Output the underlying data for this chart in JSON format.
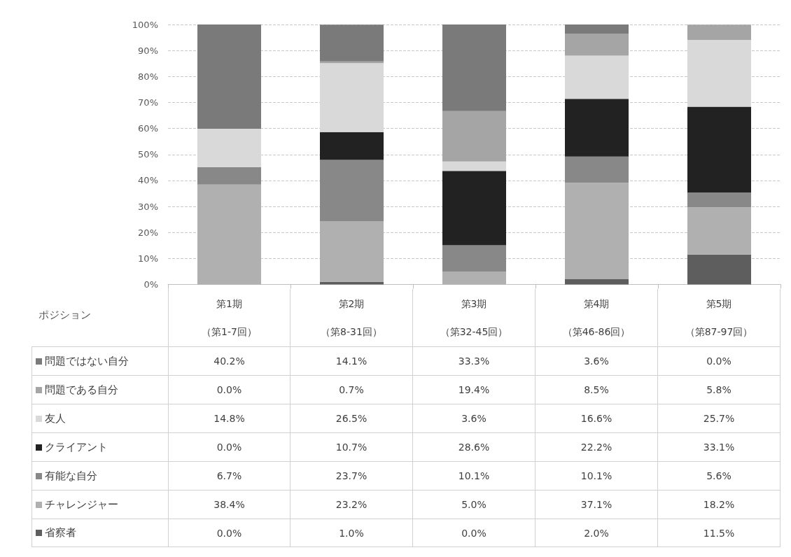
{
  "chart_data": {
    "type": "bar",
    "stacked": true,
    "categories": [
      "第1期（第1-7回）",
      "第2期（第8-31回）",
      "第3期（第32-45回）",
      "第4期（第46-86回）",
      "第5期（第87-97回）"
    ],
    "legend_title": "ポジション",
    "series": [
      {
        "name": "省察者",
        "color": "#5e5e5e",
        "values": [
          0.0,
          1.0,
          0.0,
          2.0,
          11.5
        ],
        "value_labels": [
          "0.0%",
          "1.0%",
          "0.0%",
          "2.0%",
          "11.5%"
        ]
      },
      {
        "name": "チャレンジャー",
        "color": "#b0b0b0",
        "values": [
          38.4,
          23.2,
          5.0,
          37.1,
          18.2
        ],
        "value_labels": [
          "38.4%",
          "23.2%",
          "5.0%",
          "37.1%",
          "18.2%"
        ]
      },
      {
        "name": "有能な自分",
        "color": "#888888",
        "values": [
          6.7,
          23.7,
          10.1,
          10.1,
          5.6
        ],
        "value_labels": [
          "6.7%",
          "23.7%",
          "10.1%",
          "10.1%",
          "5.6%"
        ]
      },
      {
        "name": "クライアント",
        "color": "#222222",
        "values": [
          0.0,
          10.7,
          28.6,
          22.2,
          33.1
        ],
        "value_labels": [
          "0.0%",
          "10.7%",
          "28.6%",
          "22.2%",
          "33.1%"
        ]
      },
      {
        "name": "友人",
        "color": "#d9d9d9",
        "values": [
          14.8,
          26.5,
          3.6,
          16.6,
          25.7
        ],
        "value_labels": [
          "14.8%",
          "26.5%",
          "3.6%",
          "16.6%",
          "25.7%"
        ]
      },
      {
        "name": "問題である自分",
        "color": "#a5a5a5",
        "values": [
          0.0,
          0.7,
          19.4,
          8.5,
          5.8
        ],
        "value_labels": [
          "0.0%",
          "0.7%",
          "19.4%",
          "8.5%",
          "5.8%"
        ]
      },
      {
        "name": "問題ではない自分",
        "color": "#7a7a7a",
        "values": [
          40.2,
          14.1,
          33.3,
          3.6,
          0.0
        ],
        "value_labels": [
          "40.2%",
          "14.1%",
          "33.3%",
          "3.6%",
          "0.0%"
        ]
      }
    ],
    "ylim": [
      0,
      100
    ],
    "yticks": [
      {
        "value": 0,
        "label": "0%"
      },
      {
        "value": 10,
        "label": "10%"
      },
      {
        "value": 20,
        "label": "20%"
      },
      {
        "value": 30,
        "label": "30%"
      },
      {
        "value": 40,
        "label": "40%"
      },
      {
        "value": 50,
        "label": "50%"
      },
      {
        "value": 60,
        "label": "60%"
      },
      {
        "value": 70,
        "label": "70%"
      },
      {
        "value": 80,
        "label": "80%"
      },
      {
        "value": 90,
        "label": "90%"
      },
      {
        "value": 100,
        "label": "100%"
      }
    ],
    "grid": "y",
    "legend": "bottom"
  }
}
